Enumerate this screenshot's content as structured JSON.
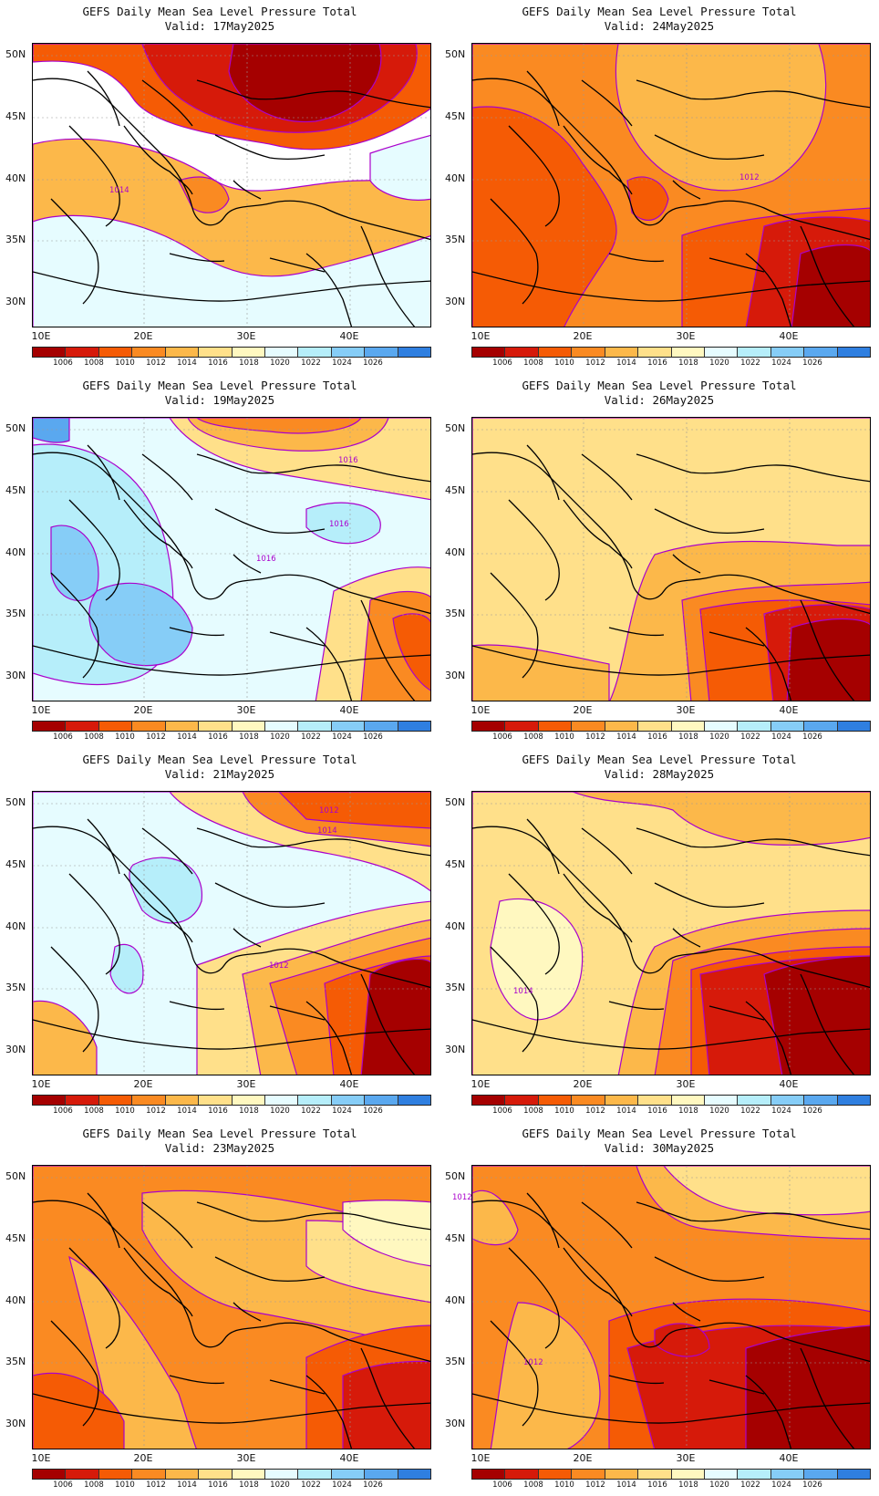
{
  "title_line1": "GEFS Daily Mean Sea Level Pressure Total",
  "valid_prefix": "Valid:",
  "lat_ticks": [
    "50N",
    "45N",
    "40N",
    "35N",
    "30N"
  ],
  "lon_ticks": [
    "10E",
    "20E",
    "30E",
    "40E"
  ],
  "colorbar": {
    "levels": [
      "1006",
      "1008",
      "1010",
      "1012",
      "1014",
      "1016",
      "1018",
      "1020",
      "1022",
      "1024",
      "1026"
    ],
    "colors": [
      "#a50000",
      "#d61a0a",
      "#f55b05",
      "#fa8a22",
      "#fcb84a",
      "#ffe08a",
      "#fff8c0",
      "#e6fcff",
      "#b6eefa",
      "#86cdf7",
      "#5aa8ef",
      "#2f7fe0"
    ]
  },
  "contour_color": "#aa00cc",
  "panels": [
    {
      "valid": "17May2025",
      "field": "p1",
      "labels": [
        {
          "text": "1014"
        }
      ]
    },
    {
      "valid": "24May2025",
      "field": "p2",
      "labels": [
        {
          "text": "1012"
        }
      ]
    },
    {
      "valid": "19May2025",
      "field": "p3",
      "labels": [
        {
          "text": "1016"
        },
        {
          "text": "1016"
        },
        {
          "text": "1016"
        }
      ]
    },
    {
      "valid": "26May2025",
      "field": "p4",
      "labels": []
    },
    {
      "valid": "21May2025",
      "field": "p5",
      "labels": [
        {
          "text": "1012"
        },
        {
          "text": "1014"
        },
        {
          "text": "1012"
        }
      ]
    },
    {
      "valid": "28May2025",
      "field": "p6",
      "labels": [
        {
          "text": "1014"
        }
      ]
    },
    {
      "valid": "23May2025",
      "field": "p7",
      "labels": []
    },
    {
      "valid": "30May2025",
      "field": "p8",
      "labels": [
        {
          "text": "1012"
        },
        {
          "text": "1012"
        }
      ]
    }
  ]
}
